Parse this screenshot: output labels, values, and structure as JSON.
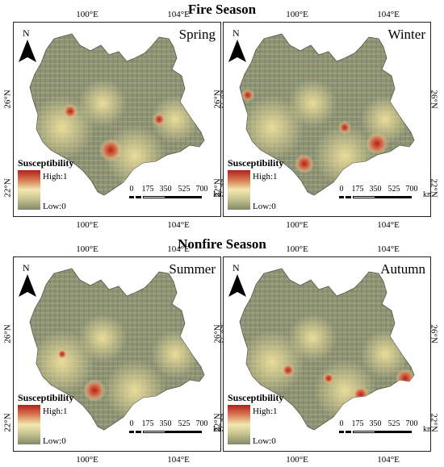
{
  "titles": {
    "fire_season": "Fire Season",
    "nonfire_season": "Nonfire Season"
  },
  "axes": {
    "lon_ticks": [
      "100°E",
      "104°E"
    ],
    "lat_ticks": [
      "26°N",
      "22°N"
    ]
  },
  "north": "N",
  "legend": {
    "title": "Susceptibility",
    "high": "High:1",
    "low": "Low:0",
    "colors": [
      "#b0211c",
      "#d77a52",
      "#f2e9b0",
      "#c9c590",
      "#808a6c"
    ]
  },
  "scale_bar": {
    "ticks": [
      "0",
      "175",
      "350",
      "525",
      "700"
    ],
    "unit": "km"
  },
  "panels": [
    {
      "season": "Spring",
      "group": "Fire Season"
    },
    {
      "season": "Winter",
      "group": "Fire Season"
    },
    {
      "season": "Summer",
      "group": "Nonfire Season"
    },
    {
      "season": "Autumn",
      "group": "Nonfire Season"
    }
  ]
}
